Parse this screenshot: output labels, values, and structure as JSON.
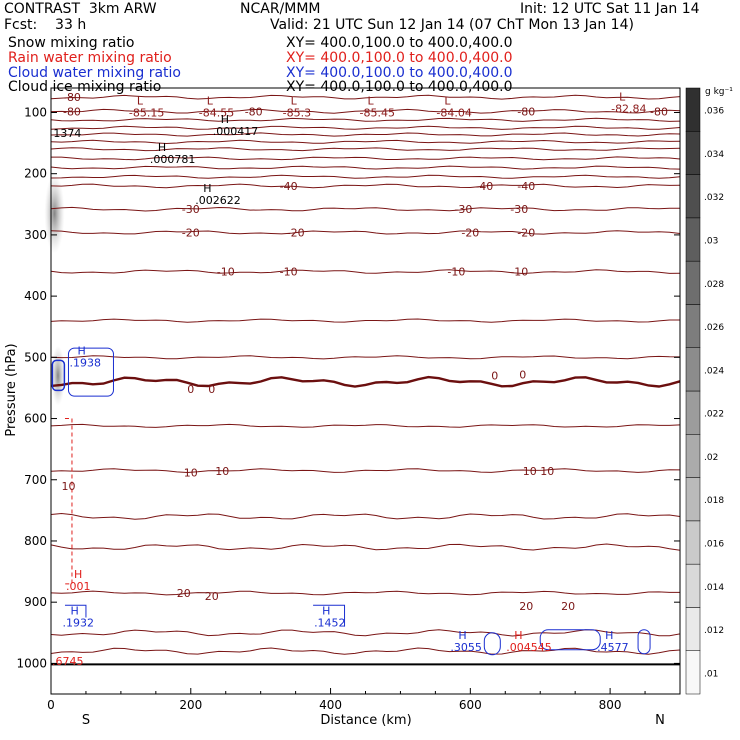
{
  "header": {
    "model": "CONTRAST  3km ARW",
    "center": "NCAR/MMM",
    "init": "Init: 12 UTC Sat 11 Jan 14",
    "fcst": "Fcst:    33 h",
    "valid": "Valid: 21 UTC Sun 12 Jan 14 (07 ChT Mon 13 Jan 14)",
    "fields": [
      {
        "name": "Snow mixing ratio",
        "xy": "XY= 400.0,100.0 to 400.0,400.0",
        "color": "#000000"
      },
      {
        "name": "Rain water mixing ratio",
        "xy": "XY= 400.0,100.0 to 400.0,400.0",
        "color": "#e0201c"
      },
      {
        "name": "Cloud water mixing ratio",
        "xy": "XY= 400.0,100.0 to 400.0,400.0",
        "color": "#1a2fd0"
      },
      {
        "name": "Cloud ice mixing ratio",
        "xy": "XY= 400.0,100.0 to 400.0,400.0",
        "color": "#000000"
      }
    ]
  },
  "chart_data": {
    "type": "contour",
    "xlabel": "Distance (km)",
    "ylabel": "Pressure (hPa)",
    "xlim": [
      0,
      900
    ],
    "ylim": [
      1050,
      60
    ],
    "xticks": [
      0,
      200,
      400,
      600,
      800
    ],
    "yticks": [
      100,
      200,
      300,
      400,
      500,
      600,
      700,
      800,
      900,
      1000
    ],
    "end_labels": {
      "left": "S",
      "right": "N"
    },
    "colorbar": {
      "unit": "g kg⁻¹",
      "ticks": [
        ".01",
        ".012",
        ".014",
        ".016",
        ".018",
        ".02",
        ".022",
        ".024",
        ".026",
        ".028",
        ".03",
        ".032",
        ".034",
        ".036"
      ]
    },
    "temperature_contours": [
      {
        "value": -80,
        "p": 75
      },
      {
        "value": -80,
        "p": 98
      },
      {
        "value": -40,
        "p": 220
      },
      {
        "value": -30,
        "p": 258
      },
      {
        "value": -20,
        "p": 296
      },
      {
        "value": -10,
        "p": 360
      },
      {
        "value": 0,
        "p": 540
      },
      {
        "value": 10,
        "p": 685
      },
      {
        "value": 20,
        "p": 885
      }
    ],
    "unlabeled_isotherm_p": [
      112,
      125,
      136,
      148,
      160,
      175,
      190,
      205,
      440,
      500,
      612,
      760,
      810,
      950,
      980
    ],
    "contour_labels": [
      {
        "text": "-80",
        "x": 30,
        "p": 75
      },
      {
        "text": "-80",
        "x": 30,
        "p": 98
      },
      {
        "text": "-80",
        "x": 290,
        "p": 98
      },
      {
        "text": "-80",
        "x": 680,
        "p": 98
      },
      {
        "text": "-80",
        "x": 870,
        "p": 98
      },
      {
        "text": "-40",
        "x": 340,
        "p": 220
      },
      {
        "text": "-40",
        "x": 620,
        "p": 220
      },
      {
        "text": "-40",
        "x": 680,
        "p": 220
      },
      {
        "text": "-30",
        "x": 200,
        "p": 258
      },
      {
        "text": "-30",
        "x": 590,
        "p": 258
      },
      {
        "text": "-30",
        "x": 670,
        "p": 258
      },
      {
        "text": "-20",
        "x": 200,
        "p": 296
      },
      {
        "text": "-20",
        "x": 350,
        "p": 296
      },
      {
        "text": "-20",
        "x": 600,
        "p": 296
      },
      {
        "text": "-20",
        "x": 680,
        "p": 296
      },
      {
        "text": "-10",
        "x": 250,
        "p": 360
      },
      {
        "text": "-10",
        "x": 340,
        "p": 360
      },
      {
        "text": "-10",
        "x": 580,
        "p": 360
      },
      {
        "text": "-10",
        "x": 670,
        "p": 360
      },
      {
        "text": "0",
        "x": 200,
        "p": 552
      },
      {
        "text": "0",
        "x": 230,
        "p": 552
      },
      {
        "text": "0",
        "x": 635,
        "p": 530
      },
      {
        "text": "0",
        "x": 675,
        "p": 528
      },
      {
        "text": "10",
        "x": 200,
        "p": 688
      },
      {
        "text": "10",
        "x": 245,
        "p": 686
      },
      {
        "text": "10",
        "x": 685,
        "p": 686
      },
      {
        "text": "10",
        "x": 710,
        "p": 686
      },
      {
        "text": "10",
        "x": 25,
        "p": 710
      },
      {
        "text": "20",
        "x": 190,
        "p": 885
      },
      {
        "text": "20",
        "x": 230,
        "p": 890
      },
      {
        "text": "20",
        "x": 680,
        "p": 906
      },
      {
        "text": "20",
        "x": 740,
        "p": 906
      }
    ],
    "extrema": [
      {
        "type": "L",
        "value": "-85.15",
        "x": 120,
        "p": 92,
        "color": "#8b1a1a"
      },
      {
        "type": "L",
        "value": "-84.55",
        "x": 220,
        "p": 92,
        "color": "#8b1a1a"
      },
      {
        "type": "L",
        "value": "-85.3",
        "x": 340,
        "p": 92,
        "color": "#8b1a1a"
      },
      {
        "type": "L",
        "value": "-85.45",
        "x": 450,
        "p": 92,
        "color": "#8b1a1a"
      },
      {
        "type": "L",
        "value": "-84.04",
        "x": 560,
        "p": 92,
        "color": "#8b1a1a"
      },
      {
        "type": "L",
        "value": "-82.84",
        "x": 810,
        "p": 85,
        "color": "#8b1a1a"
      },
      {
        "type": "H",
        "value": ".000417",
        "x": 240,
        "p": 122,
        "color": "#000000"
      },
      {
        "type": "H",
        "value": ".000781",
        "x": 150,
        "p": 168,
        "color": "#000000"
      },
      {
        "type": "H",
        "value": ".002622",
        "x": 215,
        "p": 235,
        "color": "#000000"
      },
      {
        "type": "H",
        "value": ".1938",
        "x": 35,
        "p": 500,
        "color": "#1a2fd0"
      },
      {
        "type": "H",
        "value": ".1932",
        "x": 25,
        "p": 925,
        "color": "#1a2fd0"
      },
      {
        "type": "H",
        "value": ".1452",
        "x": 385,
        "p": 925,
        "color": "#1a2fd0"
      },
      {
        "type": "H",
        "value": ".3055",
        "x": 580,
        "p": 965,
        "color": "#1a2fd0"
      },
      {
        "type": "H",
        "value": ".004545",
        "x": 660,
        "p": 965,
        "color": "#e0201c"
      },
      {
        "type": "H",
        "value": ".4577",
        "x": 790,
        "p": 965,
        "color": "#1a2fd0"
      },
      {
        "type": "H",
        "value": ".001",
        "x": 30,
        "p": 865,
        "color": "#e0201c"
      }
    ],
    "edge_labels": [
      {
        "text": "1374",
        "x": 2,
        "p": 140,
        "color": "#000000"
      },
      {
        "text": ".6745",
        "x": 0,
        "p": 1003,
        "color": "#e0201c"
      }
    ]
  }
}
